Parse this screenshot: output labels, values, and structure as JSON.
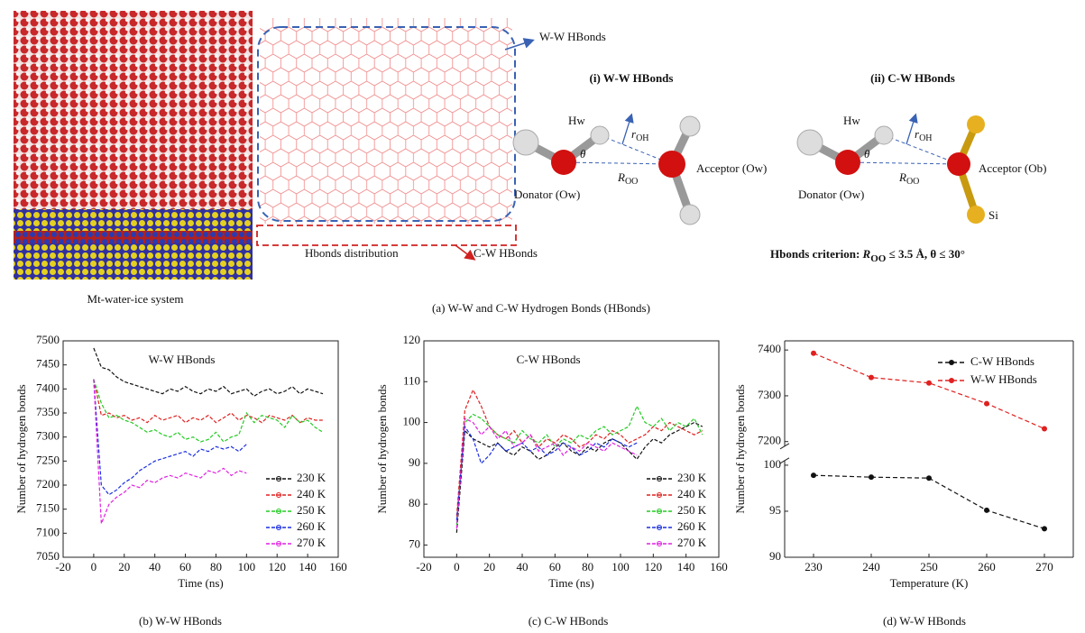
{
  "figure": {
    "top_panel": {
      "ww_label": "W-W HBonds",
      "distribution_label": "Hbonds distribution",
      "cw_label": "C-W HBonds",
      "system_label": "Mt-water-ice system",
      "panel_i": {
        "title": "(i) W-W  HBonds",
        "hw": "Hw",
        "r": "r",
        "r_sub": "OH",
        "theta": "θ",
        "acceptor": "Acceptor (Ow)",
        "donator": "Donator (Ow)",
        "R": "R",
        "R_sub": "OO"
      },
      "panel_ii": {
        "title": "(ii) C-W  HBonds",
        "hw": "Hw",
        "r": "r",
        "r_sub": "OH",
        "theta": "θ",
        "acceptor": "Acceptor (Ob)",
        "donator": "Donator (Ow)",
        "R": "R",
        "R_sub": "OO",
        "si": "Si"
      },
      "criterion": {
        "prefix": "Hbonds criterion: ",
        "R": "R",
        "R_sub": "OO",
        "rest": " ≤ 3.5 Å, θ ≤ 30°"
      },
      "caption": "(a) W-W and C-W Hydrogen Bonds (HBonds)"
    },
    "captions": [
      "(b) W-W HBonds",
      "(c) C-W HBonds",
      "(d) W-W HBonds"
    ]
  },
  "chart_data": [
    {
      "type": "line",
      "title": "W-W HBonds",
      "x_label": "Time (ns)",
      "y_label": "Number of hydrogen bonds",
      "x": [
        0,
        5,
        10,
        15,
        20,
        25,
        30,
        35,
        40,
        45,
        50,
        55,
        60,
        65,
        70,
        75,
        80,
        85,
        90,
        95,
        100,
        105,
        110,
        115,
        120,
        125,
        130,
        135,
        140,
        145,
        150
      ],
      "xlim": [
        -20,
        160
      ],
      "xticks": [
        -20,
        0,
        20,
        40,
        60,
        80,
        100,
        120,
        140,
        160
      ],
      "ylim": [
        7050,
        7500
      ],
      "yticks": [
        7050,
        7100,
        7150,
        7200,
        7250,
        7300,
        7350,
        7400,
        7450,
        7500
      ],
      "legend": "lower right",
      "series": [
        {
          "name": "230 K",
          "color": "#111111",
          "values": [
            7485,
            7445,
            7440,
            7425,
            7415,
            7410,
            7405,
            7400,
            7395,
            7390,
            7400,
            7395,
            7405,
            7395,
            7390,
            7400,
            7395,
            7405,
            7390,
            7395,
            7400,
            7385,
            7395,
            7400,
            7390,
            7395,
            7405,
            7390,
            7400,
            7395,
            7390
          ]
        },
        {
          "name": "240 K",
          "color": "#e02020",
          "values": [
            7420,
            7345,
            7350,
            7340,
            7345,
            7335,
            7340,
            7330,
            7345,
            7335,
            7340,
            7345,
            7330,
            7340,
            7335,
            7345,
            7330,
            7340,
            7350,
            7335,
            7345,
            7340,
            7330,
            7345,
            7340,
            7335,
            7345,
            7330,
            7340,
            7335,
            7335
          ]
        },
        {
          "name": "250 K",
          "color": "#22cc22",
          "values": [
            7420,
            7370,
            7340,
            7345,
            7335,
            7330,
            7320,
            7310,
            7315,
            7305,
            7300,
            7310,
            7295,
            7300,
            7290,
            7295,
            7310,
            7290,
            7300,
            7305,
            7350,
            7330,
            7345,
            7340,
            7335,
            7320,
            7345,
            7330,
            7335,
            7320,
            7310
          ]
        },
        {
          "name": "260 K",
          "color": "#1a2ee0",
          "values": [
            7420,
            7200,
            7180,
            7190,
            7205,
            7215,
            7230,
            7240,
            7250,
            7255,
            7260,
            7265,
            7270,
            7260,
            7275,
            7270,
            7280,
            7275,
            7280,
            7270,
            7285,
            null,
            null,
            null,
            null,
            null,
            null,
            null,
            null,
            null,
            null
          ]
        },
        {
          "name": "270 K",
          "color": "#e020e0",
          "values": [
            7420,
            7120,
            7160,
            7175,
            7185,
            7200,
            7195,
            7210,
            7205,
            7215,
            7220,
            7215,
            7225,
            7220,
            7215,
            7230,
            7225,
            7235,
            7220,
            7230,
            7225,
            null,
            null,
            null,
            null,
            null,
            null,
            null,
            null,
            null,
            null
          ]
        }
      ]
    },
    {
      "type": "line",
      "title": "C-W HBonds",
      "x_label": "Time (ns)",
      "y_label": "Number of hydrogen bonds",
      "x": [
        0,
        5,
        10,
        15,
        20,
        25,
        30,
        35,
        40,
        45,
        50,
        55,
        60,
        65,
        70,
        75,
        80,
        85,
        90,
        95,
        100,
        105,
        110,
        115,
        120,
        125,
        130,
        135,
        140,
        145,
        150
      ],
      "xlim": [
        -20,
        160
      ],
      "xticks": [
        -20,
        0,
        20,
        40,
        60,
        80,
        100,
        120,
        140,
        160
      ],
      "ylim": [
        67,
        120
      ],
      "yticks": [
        70,
        80,
        90,
        100,
        110,
        120
      ],
      "legend": "lower right",
      "series": [
        {
          "name": "230 K",
          "color": "#111111",
          "values": [
            73,
            98,
            96,
            95,
            94,
            95,
            93,
            92,
            94,
            93,
            91,
            92,
            94,
            95,
            93,
            92,
            94,
            93,
            95,
            96,
            95,
            93,
            91,
            94,
            96,
            95,
            97,
            98,
            99,
            100,
            99
          ]
        },
        {
          "name": "240 K",
          "color": "#e02020",
          "values": [
            77,
            103,
            108,
            104,
            99,
            97,
            96,
            98,
            95,
            97,
            94,
            96,
            95,
            97,
            96,
            94,
            95,
            97,
            96,
            98,
            97,
            95,
            96,
            97,
            99,
            98,
            100,
            99,
            98,
            97,
            98
          ]
        },
        {
          "name": "250 K",
          "color": "#22cc22",
          "values": [
            75,
            100,
            102,
            101,
            99,
            97,
            96,
            95,
            98,
            96,
            95,
            97,
            94,
            96,
            95,
            97,
            96,
            98,
            99,
            97,
            98,
            99,
            104,
            100,
            99,
            101,
            98,
            100,
            99,
            101,
            97
          ]
        },
        {
          "name": "260 K",
          "color": "#1a2ee0",
          "values": [
            76,
            99,
            96,
            90,
            92,
            95,
            93,
            94,
            95,
            93,
            94,
            92,
            93,
            95,
            94,
            92,
            93,
            95,
            94,
            96,
            95,
            94,
            95,
            null,
            null,
            null,
            null,
            null,
            null,
            null,
            null
          ]
        },
        {
          "name": "270 K",
          "color": "#e020e0",
          "values": [
            74,
            101,
            100,
            97,
            99,
            96,
            98,
            94,
            95,
            97,
            93,
            94,
            95,
            92,
            94,
            93,
            95,
            94,
            93,
            95,
            94,
            93,
            92,
            null,
            null,
            null,
            null,
            null,
            null,
            null,
            null
          ]
        }
      ]
    },
    {
      "type": "broken_line",
      "x_label": "Temperature (K)",
      "y_label": "Number of hydrogen bonds",
      "x": [
        230,
        240,
        250,
        260,
        270
      ],
      "xlim": [
        225,
        275
      ],
      "xticks": [
        230,
        240,
        250,
        260,
        270
      ],
      "ylim": [
        90,
        100.5
      ],
      "yticks": [
        90,
        95,
        100
      ],
      "y2lim": [
        7190,
        7420
      ],
      "y2ticks": [
        7200,
        7300,
        7400
      ],
      "legend": "upper right",
      "series": [
        {
          "name": "C-W HBonds",
          "color": "#111111",
          "values": [
            98.9,
            98.7,
            98.6,
            95.1,
            93.1
          ]
        },
        {
          "name": "W-W HBonds",
          "color": "#e02020",
          "axis": "y2",
          "values": [
            7393,
            7340,
            7328,
            7283,
            7228
          ]
        }
      ]
    }
  ]
}
